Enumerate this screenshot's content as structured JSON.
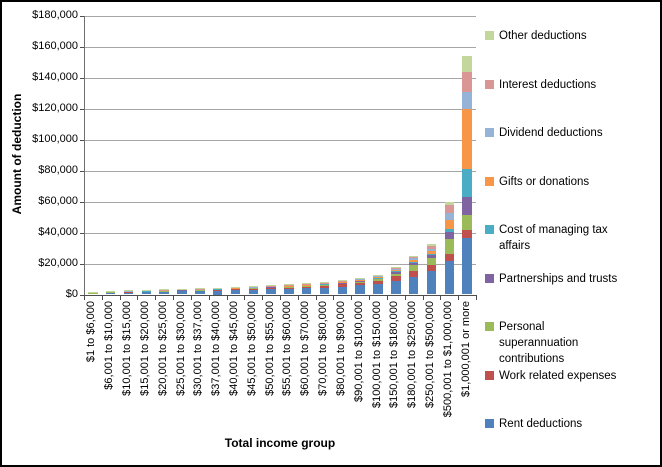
{
  "chart_data": {
    "type": "bar",
    "stacked": true,
    "title": "",
    "xlabel": "Total income group",
    "ylabel": "Amount of deduction",
    "ylim": [
      0,
      180000
    ],
    "grid": "horizontal",
    "legend_position": "right",
    "legend_entries_top_to_bottom": [
      "Other deductions",
      "Interest deductions",
      "Dividend deductions",
      "Gifts or donations",
      "Cost of managing tax affairs",
      "Partnerships and trusts",
      "Personal superannuation contributions",
      "Work related expenses",
      "Rent deductions"
    ],
    "y_tick_labels": [
      "$0",
      "$20,000",
      "$40,000",
      "$60,000",
      "$80,000",
      "$100,000",
      "$120,000",
      "$140,000",
      "$160,000",
      "$180,000"
    ],
    "categories": [
      "$1 to $6,000",
      "$6,001 to $10,000",
      "$10,001 to $15,000",
      "$15,001 to $20,000",
      "$20,001 to $25,000",
      "$25,001 to $30,000",
      "$30,001 to $37,000",
      "$37,001 to $40,000",
      "$40,001 to $45,000",
      "$45,001 to $50,000",
      "$50,001 to $55,000",
      "$55,001 to $60,000",
      "$60,001 to $70,000",
      "$70,001 to $80,000",
      "$80,001 to $90,000",
      "$90,001 to $100,000",
      "$100,001 to $150,000",
      "$150,001 to $180,000",
      "$180,001 to $250,000",
      "$250,001 to $500,000",
      "$500,001 to $1,000,000",
      "$1,000,001 or more"
    ],
    "series_bottom_to_top": [
      {
        "name": "Rent deductions",
        "color": "#4F81BD",
        "values": [
          800,
          1300,
          1500,
          1600,
          1800,
          2100,
          2200,
          2500,
          2800,
          3100,
          3400,
          3600,
          4000,
          4400,
          5100,
          5900,
          6800,
          9000,
          11200,
          15100,
          21500,
          36600
        ]
      },
      {
        "name": "Work related expenses",
        "color": "#C0504D",
        "values": [
          200,
          350,
          400,
          450,
          500,
          550,
          600,
          700,
          800,
          900,
          1000,
          1100,
          1200,
          1350,
          1550,
          1800,
          2100,
          2800,
          3900,
          3900,
          4500,
          4700
        ]
      },
      {
        "name": "Personal superannuation contributions",
        "color": "#9BBB59",
        "values": [
          100,
          250,
          250,
          250,
          250,
          280,
          280,
          300,
          300,
          320,
          340,
          380,
          420,
          480,
          560,
          650,
          900,
          1700,
          3900,
          4700,
          9500,
          9700
        ]
      },
      {
        "name": "Partnerships and trusts",
        "color": "#8064A2",
        "values": [
          50,
          100,
          120,
          130,
          150,
          160,
          170,
          180,
          200,
          220,
          240,
          260,
          300,
          330,
          390,
          450,
          600,
          900,
          1500,
          1700,
          5000,
          11900
        ]
      },
      {
        "name": "Cost of managing tax affairs",
        "color": "#4BACC6",
        "values": [
          50,
          100,
          120,
          130,
          150,
          160,
          170,
          180,
          200,
          220,
          240,
          260,
          280,
          300,
          350,
          400,
          500,
          600,
          650,
          900,
          1500,
          18300
        ]
      },
      {
        "name": "Gifts or donations",
        "color": "#F79646",
        "values": [
          50,
          80,
          80,
          90,
          100,
          120,
          130,
          150,
          160,
          170,
          180,
          200,
          220,
          250,
          300,
          350,
          500,
          800,
          1100,
          1500,
          5800,
          38300
        ]
      },
      {
        "name": "Dividend deductions",
        "color": "#95B3D7",
        "values": [
          50,
          70,
          80,
          90,
          100,
          100,
          110,
          120,
          130,
          140,
          150,
          160,
          180,
          200,
          250,
          300,
          400,
          600,
          1000,
          1700,
          4800,
          11200
        ]
      },
      {
        "name": "Interest deductions",
        "color": "#D99694",
        "values": [
          50,
          100,
          100,
          110,
          120,
          150,
          160,
          170,
          190,
          200,
          210,
          240,
          280,
          330,
          400,
          480,
          600,
          800,
          900,
          1500,
          4900,
          12900
        ]
      },
      {
        "name": "Other deductions",
        "color": "#C3D69B",
        "values": [
          150,
          150,
          150,
          150,
          130,
          180,
          180,
          200,
          220,
          230,
          240,
          300,
          320,
          360,
          400,
          470,
          500,
          700,
          650,
          1300,
          2000,
          10300
        ]
      }
    ]
  }
}
